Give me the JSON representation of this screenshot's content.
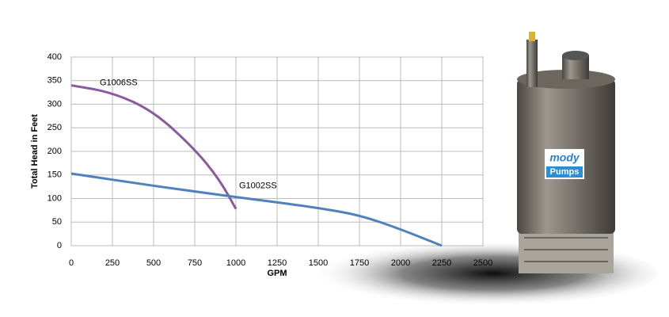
{
  "chart_data": {
    "type": "line",
    "xlabel": "GPM",
    "ylabel": "Total Head in Feet",
    "xlim": [
      0,
      2500
    ],
    "xticks": [
      0,
      250,
      500,
      750,
      1000,
      1250,
      1500,
      1750,
      2000,
      2250,
      2500
    ],
    "ylim": [
      0,
      400
    ],
    "yticks": [
      0,
      50,
      100,
      150,
      200,
      250,
      300,
      350,
      400
    ],
    "grid": true,
    "series": [
      {
        "name": "G1006SS",
        "color": "#8a5a9e",
        "x": [
          0,
          250,
          500,
          750,
          900,
          1000
        ],
        "values": [
          340,
          325,
          285,
          205,
          140,
          78
        ]
      },
      {
        "name": "G1002SS",
        "color": "#4f81bd",
        "x": [
          0,
          250,
          500,
          750,
          1000,
          1250,
          1500,
          1750,
          2000,
          2250
        ],
        "values": [
          153,
          140,
          127,
          115,
          103,
          92,
          80,
          65,
          35,
          0
        ]
      }
    ]
  },
  "logo": {
    "line1": "mody",
    "line2": "Pumps"
  }
}
